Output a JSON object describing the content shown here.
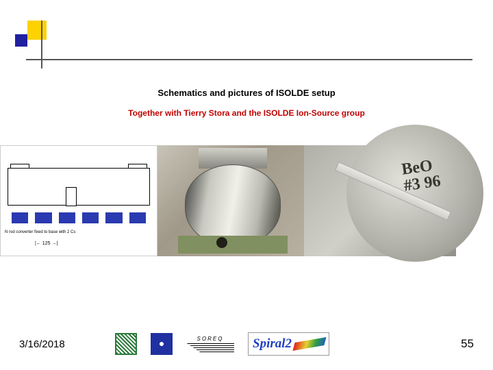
{
  "title": "Schematics and pictures of ISOLDE setup",
  "subtitle": "Together with Tierry Stora and the ISOLDE Ion-Source group",
  "panel3_writing_line1": "BeO",
  "panel3_writing_line2": "#3 96",
  "footer": {
    "date": "3/16/2018",
    "page_number": "55",
    "soreq_label": "SOREQ",
    "spiral2_label": "Spiral2"
  },
  "schematic_caption": "N rod converter fixed to\nbase with 2 Cs",
  "colors": {
    "title": "#000000",
    "subtitle": "#c00000",
    "logo_square": "#fed200",
    "spiral2_text": "#2040c0"
  }
}
